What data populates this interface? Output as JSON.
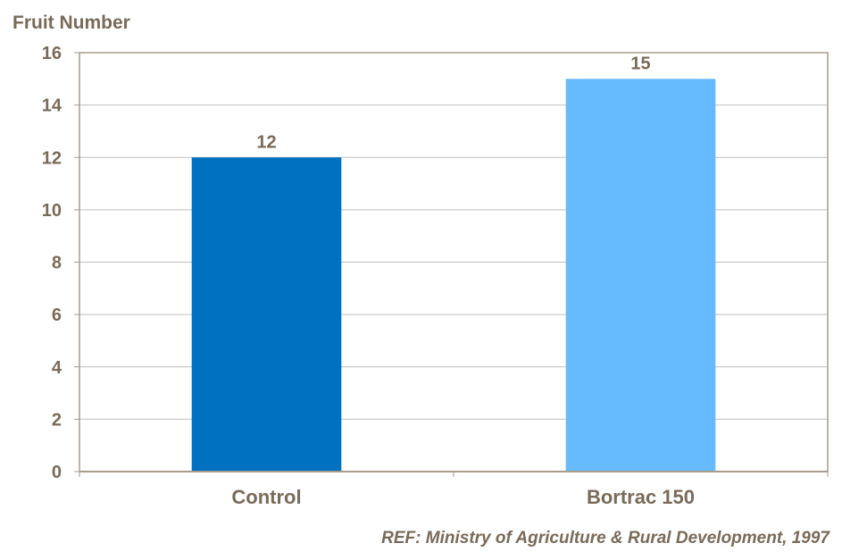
{
  "chart_data": {
    "type": "bar",
    "ylabel": "Fruit Number",
    "categories": [
      "Control",
      "Bortrac 150"
    ],
    "values": [
      12,
      15
    ],
    "data_labels": [
      "12",
      "15"
    ],
    "ylim": [
      0,
      16
    ],
    "yticks": [
      0,
      2,
      4,
      6,
      8,
      10,
      12,
      14,
      16
    ],
    "grid": true,
    "colors": {
      "bars": [
        "#0070C0",
        "#66BBFF"
      ],
      "text": "#7a6a58",
      "grid": "#bfbfbf",
      "frame": "#a89c8c"
    }
  },
  "reference": "REF: Ministry of Agriculture & Rural Development, 1997"
}
